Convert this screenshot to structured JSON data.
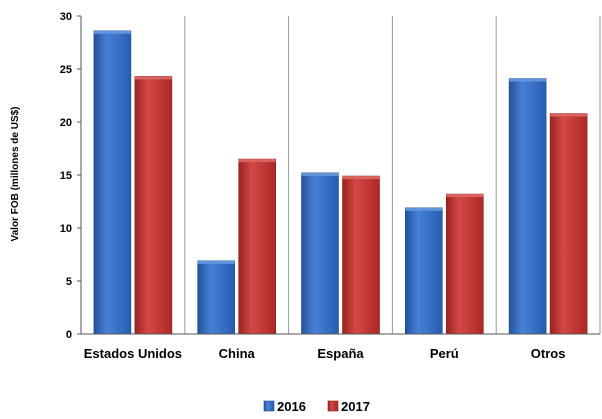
{
  "chart_data": {
    "type": "bar",
    "title": "",
    "xlabel": "",
    "ylabel": "Valor FOB (millones de US$)",
    "categories": [
      "Estados Unidos",
      "China",
      "España",
      "Perú",
      "Otros"
    ],
    "series": [
      {
        "name": "2016",
        "values": [
          28.6,
          6.9,
          15.2,
          11.9,
          24.1
        ],
        "color": "#2e6fd1"
      },
      {
        "name": "2017",
        "values": [
          24.3,
          16.5,
          14.9,
          13.2,
          20.8
        ],
        "color": "#cc2f2b"
      }
    ],
    "ylim": [
      0,
      30
    ],
    "yticks": [
      "0",
      "5",
      "10",
      "15",
      "20",
      "25",
      "30"
    ],
    "grid": "vertical-category-separators",
    "legend_position": "bottom-center"
  }
}
